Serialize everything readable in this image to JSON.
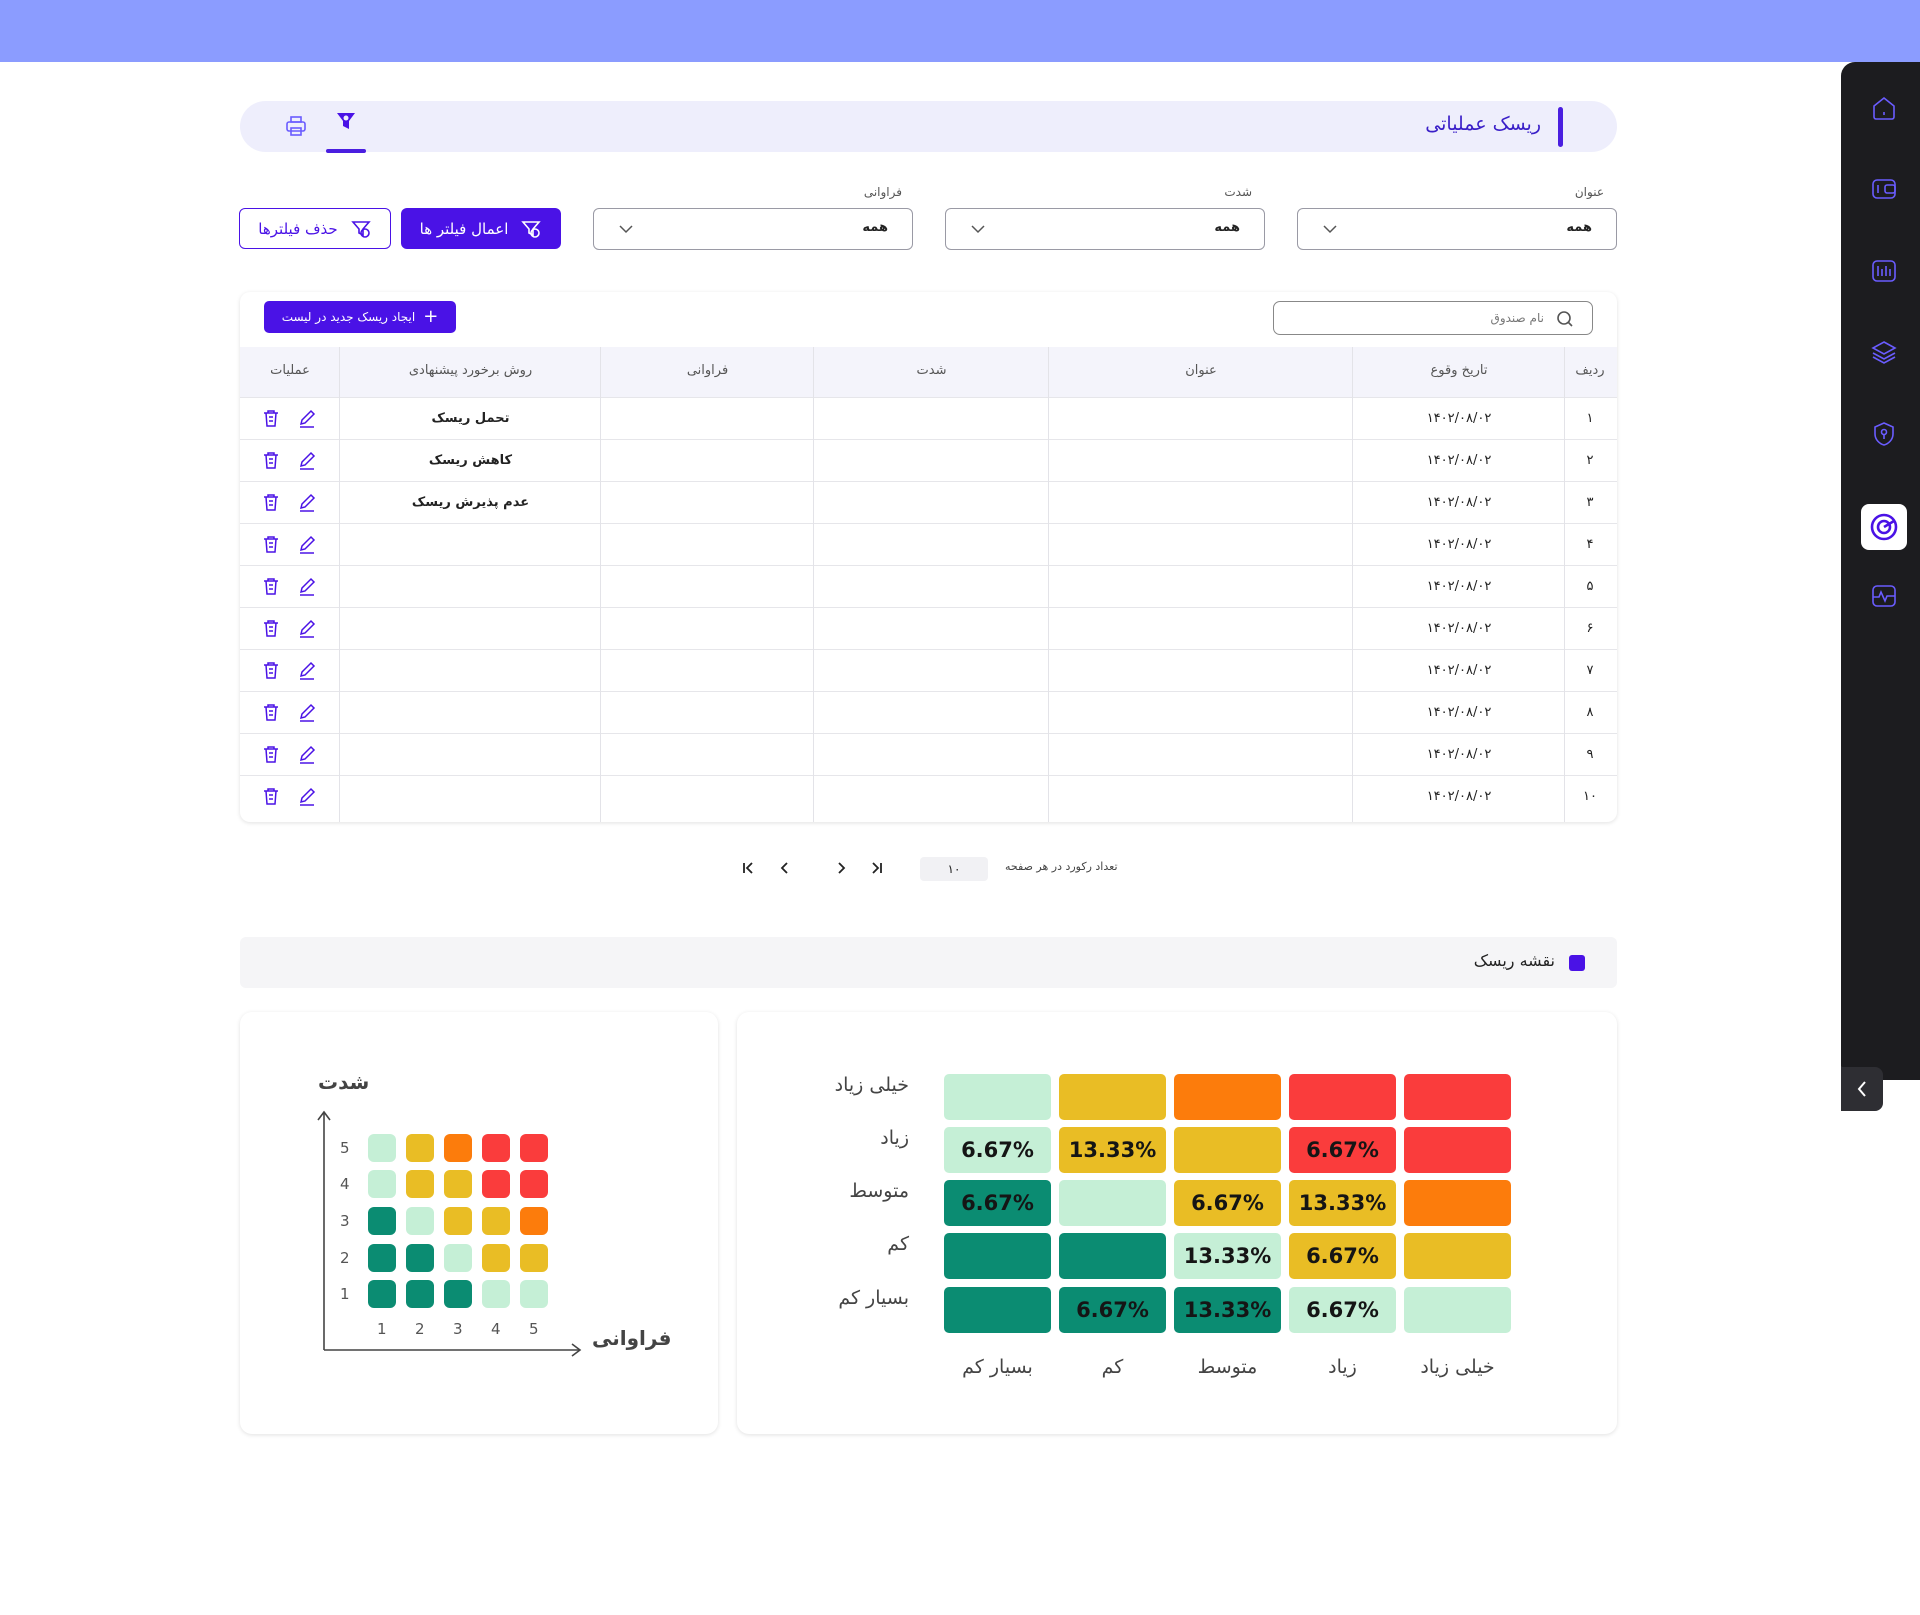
{
  "colors": {
    "accent": "#4a12e6",
    "topbar": "#8b9cff",
    "sidebar": "#1c1c1f",
    "very_low": "#0b8c72",
    "low": "#c5efd6",
    "medium": "#e9bd25",
    "high_orange": "#fc7c0c",
    "high": "#fa3c3c"
  },
  "sidebar": {
    "items": [
      {
        "icon": "home-icon"
      },
      {
        "icon": "wallet-icon"
      },
      {
        "icon": "chart-bars-icon"
      },
      {
        "icon": "layers-icon"
      },
      {
        "icon": "shield-icon"
      },
      {
        "icon": "target-icon",
        "active": true
      },
      {
        "icon": "activity-icon"
      }
    ],
    "collapse_icon": "chevron-left-icon"
  },
  "header": {
    "title": "ریسک عملیاتی",
    "tabs": [
      {
        "icon": "filter-icon",
        "active": true
      },
      {
        "icon": "printer-icon",
        "active": false
      }
    ]
  },
  "filters": {
    "title_label": "عنوان",
    "title_value": "همه",
    "severity_label": "شدت",
    "severity_value": "همه",
    "frequency_label": "فراوانی",
    "frequency_value": "همه",
    "apply_label": "اعمال فیلتر ها",
    "clear_label": "حذف فیلترها"
  },
  "table": {
    "new_button": "ایجاد ریسک جدید در لیست",
    "search_placeholder": "نام صندوق",
    "columns": {
      "row": "ردیف",
      "date": "تاریخ وقوع",
      "title": "عنوان",
      "severity": "شدت",
      "frequency": "فراوانی",
      "method": "روش برخورد پیشنهادی",
      "ops": "عملیات"
    },
    "rows": [
      {
        "n": "۱",
        "date": "۱۴۰۲/۰۸/۰۲",
        "title": "",
        "severity": "",
        "frequency": "",
        "method": "تحمل ریسک"
      },
      {
        "n": "۲",
        "date": "۱۴۰۲/۰۸/۰۲",
        "title": "",
        "severity": "",
        "frequency": "",
        "method": "کاهش ریسک"
      },
      {
        "n": "۳",
        "date": "۱۴۰۲/۰۸/۰۲",
        "title": "",
        "severity": "",
        "frequency": "",
        "method": "عدم پذیرش ریسک"
      },
      {
        "n": "۴",
        "date": "۱۴۰۲/۰۸/۰۲",
        "title": "",
        "severity": "",
        "frequency": "",
        "method": ""
      },
      {
        "n": "۵",
        "date": "۱۴۰۲/۰۸/۰۲",
        "title": "",
        "severity": "",
        "frequency": "",
        "method": ""
      },
      {
        "n": "۶",
        "date": "۱۴۰۲/۰۸/۰۲",
        "title": "",
        "severity": "",
        "frequency": "",
        "method": ""
      },
      {
        "n": "۷",
        "date": "۱۴۰۲/۰۸/۰۲",
        "title": "",
        "severity": "",
        "frequency": "",
        "method": ""
      },
      {
        "n": "۸",
        "date": "۱۴۰۲/۰۸/۰۲",
        "title": "",
        "severity": "",
        "frequency": "",
        "method": ""
      },
      {
        "n": "۹",
        "date": "۱۴۰۲/۰۸/۰۲",
        "title": "",
        "severity": "",
        "frequency": "",
        "method": ""
      },
      {
        "n": "۱۰",
        "date": "۱۴۰۲/۰۸/۰۲",
        "title": "",
        "severity": "",
        "frequency": "",
        "method": ""
      }
    ]
  },
  "pagination": {
    "label": "تعداد رکورد در هر صفحه",
    "page_size": "۱۰"
  },
  "risk_map": {
    "section_title": "نقشه ریسک",
    "row_labels": [
      "خیلی زیاد",
      "زیاد",
      "متوسط",
      "کم",
      "بسیار کم"
    ],
    "col_labels": [
      "بسیار کم",
      "کم",
      "متوسط",
      "زیاد",
      "خیلی زیاد"
    ],
    "cells": [
      [
        {
          "c": "low",
          "t": ""
        },
        {
          "c": "medium",
          "t": ""
        },
        {
          "c": "high_orange",
          "t": ""
        },
        {
          "c": "high",
          "t": ""
        },
        {
          "c": "high",
          "t": ""
        }
      ],
      [
        {
          "c": "low",
          "t": "6.67%"
        },
        {
          "c": "medium",
          "t": "13.33%"
        },
        {
          "c": "medium",
          "t": ""
        },
        {
          "c": "high",
          "t": "6.67%"
        },
        {
          "c": "high",
          "t": ""
        }
      ],
      [
        {
          "c": "very_low",
          "t": "6.67%"
        },
        {
          "c": "low",
          "t": ""
        },
        {
          "c": "medium",
          "t": "6.67%"
        },
        {
          "c": "medium",
          "t": "13.33%"
        },
        {
          "c": "high_orange",
          "t": ""
        }
      ],
      [
        {
          "c": "very_low",
          "t": ""
        },
        {
          "c": "very_low",
          "t": ""
        },
        {
          "c": "low",
          "t": "13.33%"
        },
        {
          "c": "medium",
          "t": "6.67%"
        },
        {
          "c": "medium",
          "t": ""
        }
      ],
      [
        {
          "c": "very_low",
          "t": ""
        },
        {
          "c": "very_low",
          "t": "6.67%"
        },
        {
          "c": "very_low",
          "t": "13.33%"
        },
        {
          "c": "low",
          "t": "6.67%"
        },
        {
          "c": "low",
          "t": ""
        }
      ]
    ]
  },
  "legend_chart": {
    "y_title": "شدت",
    "x_title": "فراوانی",
    "y_ticks": [
      "5",
      "4",
      "3",
      "2",
      "1"
    ],
    "x_ticks": [
      "1",
      "2",
      "3",
      "4",
      "5"
    ],
    "grid": [
      [
        "low",
        "medium",
        "high_orange",
        "high",
        "high"
      ],
      [
        "low",
        "medium",
        "medium",
        "high",
        "high"
      ],
      [
        "very_low",
        "low",
        "medium",
        "medium",
        "high_orange"
      ],
      [
        "very_low",
        "very_low",
        "low",
        "medium",
        "medium"
      ],
      [
        "very_low",
        "very_low",
        "very_low",
        "low",
        "low"
      ]
    ]
  }
}
